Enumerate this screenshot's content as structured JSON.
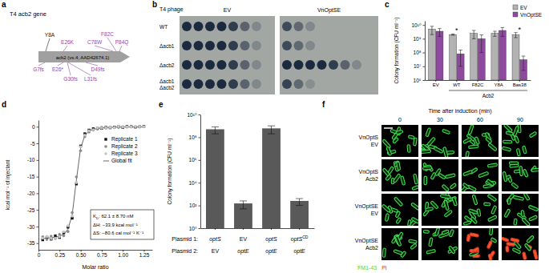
{
  "panels": {
    "a": {
      "panel_label": "a",
      "title": "T4 acb2 gene",
      "gene_label": "acb2 (vs.4, AAD42674.1)",
      "mutations_above": [
        {
          "text": "Y8A",
          "color": "#1a1a1a"
        },
        {
          "text": "E26K",
          "color": "#8e4a9e"
        },
        {
          "text": "C78W",
          "color": "#8e4a9e"
        },
        {
          "text": "F82C",
          "color": "#8e4a9e"
        },
        {
          "text": "P84Q",
          "color": "#8e4a9e"
        }
      ],
      "mutations_below": [
        {
          "text": "G7fs",
          "color": "#8e4a9e"
        },
        {
          "text": "E26*",
          "color": "#8e4a9e"
        },
        {
          "text": "D49fs",
          "color": "#8e4a9e"
        },
        {
          "text": "G30fs",
          "color": "#8e4a9e"
        },
        {
          "text": "L31fs",
          "color": "#8e4a9e"
        }
      ]
    },
    "b": {
      "panel_label": "b",
      "header": "T4 phage",
      "columns": [
        "EV",
        "VnOptSE"
      ],
      "rows": [
        [
          "WT"
        ],
        [
          "Δacb1"
        ],
        [
          "Δacb2"
        ],
        [
          "Δacb1",
          "Δacb2"
        ]
      ]
    },
    "f": {
      "panel_label": "f",
      "title": "Time after induction (min)",
      "columns": [
        0,
        30,
        60,
        90
      ],
      "rows": [
        [
          "VnOptS",
          "EV"
        ],
        [
          "VnOptS",
          "Acb2"
        ],
        [
          "VnOptSE",
          "EV"
        ],
        [
          "VnOptSE",
          "Acb2"
        ]
      ],
      "stains": [
        {
          "text": "FM1-43",
          "color": "#3ddc4f"
        },
        {
          "text": "PI",
          "color": "#e8322a"
        }
      ]
    }
  },
  "chart_data": [
    {
      "panel_label": "c",
      "type": "bar",
      "categories": [
        "EV",
        "WT",
        "F82C",
        "Y8A",
        "Bas38"
      ],
      "category_group": {
        "label": "Acb2",
        "categories": [
          "WT",
          "F82C",
          "Y8A",
          "Bas38"
        ]
      },
      "y_label": "Colony formation (CFU ml⁻¹)",
      "log": "y",
      "ylim": [
        1000000,
        20000000000
      ],
      "yticks": [
        {
          "value": 1000000,
          "label": "10⁶"
        },
        {
          "value": 10000000,
          "label": "10⁷"
        },
        {
          "value": 100000000,
          "label": "10⁸"
        },
        {
          "value": 1000000000,
          "label": "10⁹"
        },
        {
          "value": 10000000000,
          "label": "10¹⁰"
        }
      ],
      "legend": "upper right",
      "series": [
        {
          "name": "EV",
          "color": "#b3b3b3",
          "values": [
            5000000000,
            2000000000,
            2500000000,
            2500000000,
            2000000000
          ],
          "errors": [
            3000000000,
            200000000,
            1500000000,
            1000000000,
            800000000
          ]
        },
        {
          "name": "VnOptSE",
          "color": "#8e4a9e",
          "values": [
            3500000000,
            80000000,
            1000000000,
            4000000000,
            30000000
          ],
          "errors": [
            2000000000,
            70000000,
            900000000,
            2500000000,
            25000000
          ]
        }
      ],
      "annotations": [
        {
          "text": "*",
          "category": "WT"
        },
        {
          "text": "*",
          "category": "Bas38"
        }
      ]
    },
    {
      "panel_label": "d",
      "type": "scatter",
      "x": [
        0.05,
        0.1,
        0.15,
        0.2,
        0.25,
        0.3,
        0.35,
        0.4,
        0.45,
        0.5,
        0.55,
        0.6,
        0.65,
        0.7,
        0.75,
        0.8,
        0.85,
        0.9,
        0.95,
        1.0,
        1.05,
        1.1,
        1.15,
        1.2,
        1.25
      ],
      "xlim": [
        0,
        1.35
      ],
      "xticks": [
        0,
        0.25,
        {
          "value": 0.5,
          "label": "0.50"
        },
        0.75,
        {
          "value": 1,
          "label": "1.00"
        },
        1.25
      ],
      "ylim": [
        -37,
        2
      ],
      "yticks": [
        0,
        -5,
        -10,
        -15,
        -20,
        -25,
        -30,
        -35
      ],
      "x_label": "Molar ratio",
      "y_label": "kcal mol⁻¹ of injectant",
      "legend": "upper right",
      "series": [
        {
          "name": "Replicate 1",
          "color": "#111111",
          "marker": "square",
          "values": [
            -34,
            -33.2,
            -33.8,
            -32.8,
            -33.3,
            -31.9,
            -30.2,
            -27.5,
            -17.2,
            -5.8,
            -2.1,
            -1.0,
            -0.6,
            -0.4,
            -0.5,
            -0.2,
            -0.3,
            -0.1,
            0,
            -0.2,
            0.1,
            0,
            -0.1,
            0,
            0.1
          ]
        },
        {
          "name": "Replicate 2",
          "color": "#8a8a8a",
          "marker": "circle",
          "values": [
            -33.1,
            -33.9,
            -32.9,
            -33.6,
            -32.4,
            -32.8,
            -31.5,
            -25.8,
            -15.1,
            -7.2,
            -3.0,
            -1.6,
            -1.0,
            -0.7,
            -0.2,
            -0.4,
            -0.1,
            -0.3,
            -0.2,
            0,
            -0.1,
            0.1,
            0,
            -0.1,
            0
          ]
        },
        {
          "name": "Replicate 3",
          "color": "#c4c4c4",
          "marker": "circle",
          "values": [
            -33.5,
            -33.0,
            -33.6,
            -33.5,
            -33.1,
            -31.6,
            -29.8,
            -26.9,
            -16.8,
            -6.0,
            -2.5,
            -1.2,
            -0.9,
            -0.3,
            -0.4,
            -0.3,
            -0.2,
            -0.2,
            0.1,
            -0.1,
            0,
            -0.1,
            0.1,
            0,
            0
          ]
        },
        {
          "name": "Global fit",
          "type": "line",
          "color": "#666666",
          "line_style": "solid",
          "values": [
            -33.6,
            -33.5,
            -33.4,
            -33.2,
            -32.9,
            -32.3,
            -30.8,
            -26.5,
            -16,
            -6.5,
            -2.6,
            -1.3,
            -0.8,
            -0.5,
            -0.35,
            -0.25,
            -0.2,
            -0.15,
            -0.12,
            -0.1,
            -0.08,
            -0.07,
            -0.06,
            -0.05,
            -0.05
          ]
        }
      ],
      "annotations": [
        [
          {
            "text": "K"
          },
          {
            "text": "D",
            "sub": true
          },
          {
            "text": ": 62.1 ± 8.70 nM"
          }
        ],
        [
          {
            "text": "ΔH: −33.9 kcal mol⁻¹"
          }
        ],
        [
          {
            "text": "ΔS: −80.6 cal mol⁻¹ K⁻¹"
          }
        ]
      ]
    },
    {
      "panel_label": "e",
      "type": "bar",
      "categories": [
        null,
        null,
        null,
        null
      ],
      "values": [
        500000000,
        150,
        600000000,
        250
      ],
      "errors": [
        300000000,
        100,
        400000000,
        150
      ],
      "color": "#595959",
      "log": "y",
      "ylim": [
        1,
        10000000000
      ],
      "yticks": [
        {
          "value": 1,
          "label": "10⁰"
        },
        {
          "value": 100,
          "label": "10²"
        },
        {
          "value": 10000,
          "label": "10⁴"
        },
        {
          "value": 1000000,
          "label": "10⁶"
        },
        {
          "value": 100000000,
          "label": "10⁸"
        },
        {
          "value": 10000000000,
          "label": "10¹⁰"
        }
      ],
      "y_label": "Colony formation (CFU ml⁻¹)",
      "table": {
        "rows": [
          {
            "label": "Plasmid 1:",
            "cells": [
              [
                {
                  "text": "optS",
                  "italic": true
                }
              ],
              [
                {
                  "text": "EV"
                }
              ],
              [
                {
                  "text": "optS",
                  "italic": true
                }
              ],
              [
                {
                  "text": "optS",
                  "italic": true
                },
                {
                  "text": "CD",
                  "sup": true
                }
              ]
            ]
          },
          {
            "label": "Plasmid 2:",
            "cells": [
              [
                {
                  "text": "EV"
                }
              ],
              [
                {
                  "text": "optE",
                  "italic": true
                }
              ],
              [
                {
                  "text": "optE",
                  "italic": true
                }
              ],
              [
                {
                  "text": "optE",
                  "italic": true
                }
              ]
            ]
          }
        ]
      }
    }
  ]
}
